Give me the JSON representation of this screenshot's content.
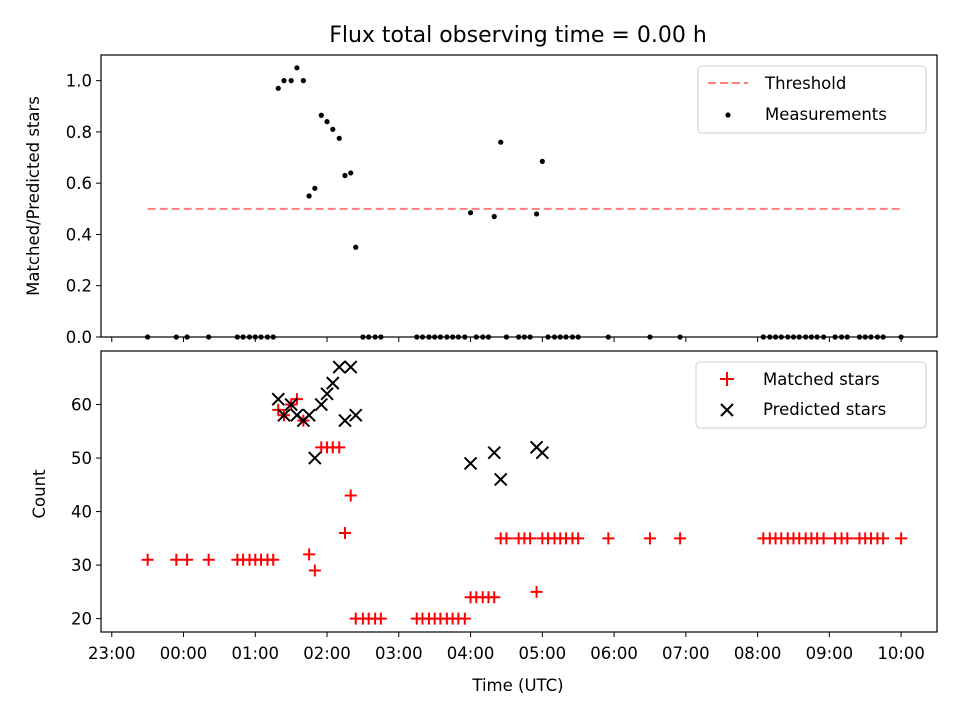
{
  "chart_data": [
    {
      "type": "scatter",
      "title": "Flux total observing time = 0.00 h",
      "xlabel": "",
      "ylabel": "Matched/Predicted stars",
      "xlim": [
        -1.15,
        10.5
      ],
      "ylim": [
        0,
        1.1
      ],
      "yticks": [
        "0.0",
        "0.2",
        "0.4",
        "0.6",
        "0.8",
        "1.0"
      ],
      "legend": {
        "placement": "top-right",
        "entries": [
          "Threshold",
          "Measurements"
        ]
      },
      "threshold": {
        "name": "Threshold",
        "y": 0.5,
        "x": [
          -0.5,
          10.0
        ],
        "color": "#ff7f7f",
        "style": "dashed"
      },
      "series": [
        {
          "name": "Measurements",
          "color": "#000000",
          "marker": "dot",
          "points": [
            [
              -0.5,
              0.0
            ],
            [
              -0.1,
              0.0
            ],
            [
              0.05,
              0.0
            ],
            [
              0.35,
              0.0
            ],
            [
              0.75,
              0.0
            ],
            [
              0.83,
              0.0
            ],
            [
              0.92,
              0.0
            ],
            [
              1.0,
              0.0
            ],
            [
              1.08,
              0.0
            ],
            [
              1.17,
              0.0
            ],
            [
              1.25,
              0.0
            ],
            [
              1.32,
              0.97
            ],
            [
              1.4,
              1.0
            ],
            [
              1.5,
              1.0
            ],
            [
              1.58,
              1.05
            ],
            [
              1.67,
              1.0
            ],
            [
              1.75,
              0.55
            ],
            [
              1.83,
              0.58
            ],
            [
              1.92,
              0.865
            ],
            [
              2.0,
              0.84
            ],
            [
              2.08,
              0.81
            ],
            [
              2.17,
              0.775
            ],
            [
              2.25,
              0.63
            ],
            [
              2.33,
              0.64
            ],
            [
              2.4,
              0.35
            ],
            [
              2.5,
              0.0
            ],
            [
              2.58,
              0.0
            ],
            [
              2.67,
              0.0
            ],
            [
              2.75,
              0.0
            ],
            [
              3.25,
              0.0
            ],
            [
              3.33,
              0.0
            ],
            [
              3.42,
              0.0
            ],
            [
              3.5,
              0.0
            ],
            [
              3.58,
              0.0
            ],
            [
              3.67,
              0.0
            ],
            [
              3.75,
              0.0
            ],
            [
              3.83,
              0.0
            ],
            [
              3.92,
              0.0
            ],
            [
              4.0,
              0.485
            ],
            [
              4.08,
              0.0
            ],
            [
              4.17,
              0.0
            ],
            [
              4.25,
              0.0
            ],
            [
              4.33,
              0.47
            ],
            [
              4.42,
              0.76
            ],
            [
              4.5,
              0.0
            ],
            [
              4.67,
              0.0
            ],
            [
              4.75,
              0.0
            ],
            [
              4.83,
              0.0
            ],
            [
              4.92,
              0.48
            ],
            [
              5.0,
              0.685
            ],
            [
              5.08,
              0.0
            ],
            [
              5.17,
              0.0
            ],
            [
              5.25,
              0.0
            ],
            [
              5.33,
              0.0
            ],
            [
              5.42,
              0.0
            ],
            [
              5.5,
              0.0
            ],
            [
              5.92,
              0.0
            ],
            [
              6.5,
              0.0
            ],
            [
              6.92,
              0.0
            ],
            [
              8.08,
              0.0
            ],
            [
              8.17,
              0.0
            ],
            [
              8.25,
              0.0
            ],
            [
              8.33,
              0.0
            ],
            [
              8.42,
              0.0
            ],
            [
              8.5,
              0.0
            ],
            [
              8.58,
              0.0
            ],
            [
              8.67,
              0.0
            ],
            [
              8.75,
              0.0
            ],
            [
              8.83,
              0.0
            ],
            [
              8.92,
              0.0
            ],
            [
              9.08,
              0.0
            ],
            [
              9.17,
              0.0
            ],
            [
              9.25,
              0.0
            ],
            [
              9.42,
              0.0
            ],
            [
              9.5,
              0.0
            ],
            [
              9.58,
              0.0
            ],
            [
              9.67,
              0.0
            ],
            [
              9.75,
              0.0
            ],
            [
              10.0,
              0.0
            ]
          ]
        }
      ]
    },
    {
      "type": "scatter",
      "title": "",
      "xlabel": "Time (UTC)",
      "ylabel": "Count",
      "xlim": [
        -1.15,
        10.5
      ],
      "ylim": [
        17.5,
        70
      ],
      "yticks": [
        "20",
        "30",
        "40",
        "50",
        "60"
      ],
      "xticks": [
        "23:00",
        "00:00",
        "01:00",
        "02:00",
        "03:00",
        "04:00",
        "05:00",
        "06:00",
        "07:00",
        "08:00",
        "09:00",
        "10:00"
      ],
      "legend": {
        "placement": "top-right",
        "entries": [
          "Matched stars",
          "Predicted stars"
        ]
      },
      "series": [
        {
          "name": "Matched stars",
          "color": "#ff0000",
          "marker": "plus",
          "points": [
            [
              -0.5,
              31
            ],
            [
              -0.1,
              31
            ],
            [
              0.05,
              31
            ],
            [
              0.35,
              31
            ],
            [
              0.75,
              31
            ],
            [
              0.83,
              31
            ],
            [
              0.92,
              31
            ],
            [
              1.0,
              31
            ],
            [
              1.08,
              31
            ],
            [
              1.17,
              31
            ],
            [
              1.25,
              31
            ],
            [
              1.32,
              59
            ],
            [
              1.4,
              58
            ],
            [
              1.5,
              60
            ],
            [
              1.58,
              61
            ],
            [
              1.67,
              57
            ],
            [
              1.75,
              32
            ],
            [
              1.83,
              29
            ],
            [
              1.92,
              52
            ],
            [
              2.0,
              52
            ],
            [
              2.08,
              52
            ],
            [
              2.17,
              52
            ],
            [
              2.25,
              36
            ],
            [
              2.33,
              43
            ],
            [
              2.4,
              20
            ],
            [
              2.5,
              20
            ],
            [
              2.58,
              20
            ],
            [
              2.67,
              20
            ],
            [
              2.75,
              20
            ],
            [
              3.25,
              20
            ],
            [
              3.33,
              20
            ],
            [
              3.42,
              20
            ],
            [
              3.5,
              20
            ],
            [
              3.58,
              20
            ],
            [
              3.67,
              20
            ],
            [
              3.75,
              20
            ],
            [
              3.83,
              20
            ],
            [
              3.92,
              20
            ],
            [
              4.0,
              24
            ],
            [
              4.08,
              24
            ],
            [
              4.17,
              24
            ],
            [
              4.25,
              24
            ],
            [
              4.33,
              24
            ],
            [
              4.42,
              35
            ],
            [
              4.5,
              35
            ],
            [
              4.67,
              35
            ],
            [
              4.75,
              35
            ],
            [
              4.83,
              35
            ],
            [
              4.92,
              25
            ],
            [
              5.0,
              35
            ],
            [
              5.08,
              35
            ],
            [
              5.17,
              35
            ],
            [
              5.25,
              35
            ],
            [
              5.33,
              35
            ],
            [
              5.42,
              35
            ],
            [
              5.5,
              35
            ],
            [
              5.92,
              35
            ],
            [
              6.5,
              35
            ],
            [
              6.92,
              35
            ],
            [
              8.08,
              35
            ],
            [
              8.17,
              35
            ],
            [
              8.25,
              35
            ],
            [
              8.33,
              35
            ],
            [
              8.42,
              35
            ],
            [
              8.5,
              35
            ],
            [
              8.58,
              35
            ],
            [
              8.67,
              35
            ],
            [
              8.75,
              35
            ],
            [
              8.83,
              35
            ],
            [
              8.92,
              35
            ],
            [
              9.08,
              35
            ],
            [
              9.17,
              35
            ],
            [
              9.25,
              35
            ],
            [
              9.42,
              35
            ],
            [
              9.5,
              35
            ],
            [
              9.58,
              35
            ],
            [
              9.67,
              35
            ],
            [
              9.75,
              35
            ],
            [
              10.0,
              35
            ]
          ]
        },
        {
          "name": "Predicted stars",
          "color": "#000000",
          "marker": "x",
          "points": [
            [
              1.32,
              61
            ],
            [
              1.4,
              58
            ],
            [
              1.5,
              60
            ],
            [
              1.58,
              58
            ],
            [
              1.67,
              57
            ],
            [
              1.75,
              58
            ],
            [
              1.83,
              50
            ],
            [
              1.92,
              60
            ],
            [
              2.0,
              62
            ],
            [
              2.08,
              64
            ],
            [
              2.17,
              67
            ],
            [
              2.25,
              57
            ],
            [
              2.33,
              67
            ],
            [
              2.4,
              58
            ],
            [
              4.0,
              49
            ],
            [
              4.33,
              51
            ],
            [
              4.42,
              46
            ],
            [
              4.92,
              52
            ],
            [
              5.0,
              51
            ]
          ]
        }
      ]
    }
  ]
}
